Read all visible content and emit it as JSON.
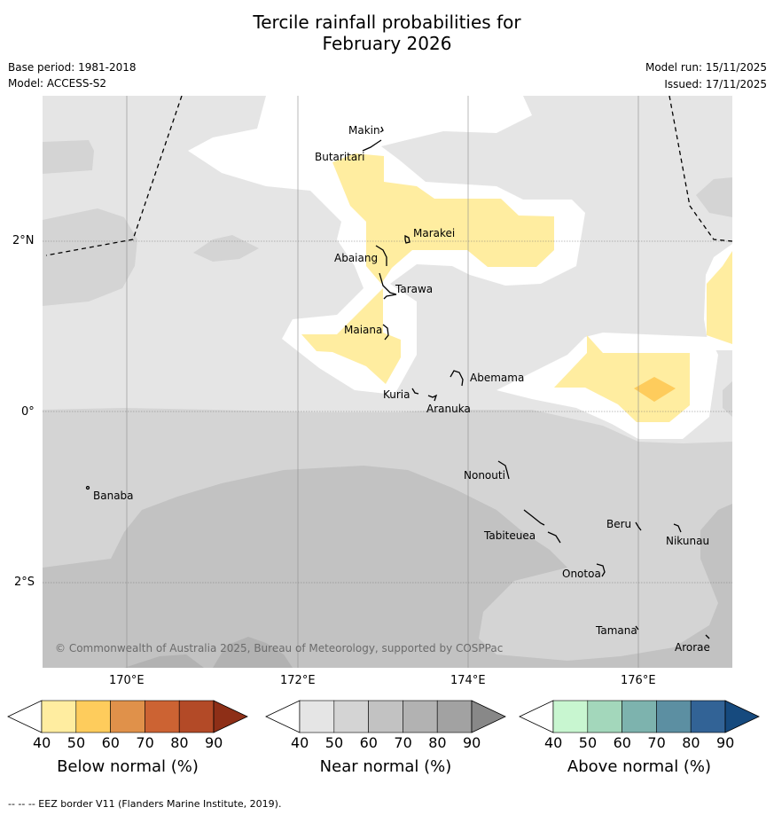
{
  "title": {
    "line1": "Tercile rainfall probabilities for",
    "line2": "February 2026"
  },
  "meta": {
    "base_period": "Base period: 1981-2018",
    "model": "Model: ACCESS-S2",
    "model_run": "Model run: 15/11/2025",
    "issued": "Issued: 17/11/2025"
  },
  "axes": {
    "lat_ticks": [
      "2°N",
      "0°",
      "2°S"
    ],
    "lon_ticks": [
      "170°E",
      "172°E",
      "174°E",
      "176°E"
    ]
  },
  "places": [
    "Makin",
    "Butaritari",
    "Marakei",
    "Abaiang",
    "Tarawa",
    "Maiana",
    "Abemama",
    "Kuria",
    "Aranuka",
    "Nonouti",
    "Banaba",
    "Tabiteuea",
    "Beru",
    "Nikunau",
    "Onotoa",
    "Tamana",
    "Arorae"
  ],
  "copyright": "© Commonwealth of Australia 2025, Bureau of Meteorology, supported by COSPPac",
  "colorbars": [
    {
      "title": "Below normal (%)",
      "ticks": [
        "40",
        "50",
        "60",
        "70",
        "80",
        "90"
      ],
      "colors": [
        "#ffffff",
        "#ffeda0",
        "#fecc5c",
        "#e0914a",
        "#cc6333",
        "#b34a27",
        "#8e2f17"
      ]
    },
    {
      "title": "Near normal (%)",
      "ticks": [
        "40",
        "50",
        "60",
        "70",
        "80",
        "90"
      ],
      "colors": [
        "#ffffff",
        "#e5e5e5",
        "#d4d4d4",
        "#c2c2c2",
        "#b2b2b2",
        "#a2a2a2",
        "#888888"
      ]
    },
    {
      "title": "Above normal (%)",
      "ticks": [
        "40",
        "50",
        "60",
        "70",
        "80",
        "90"
      ],
      "colors": [
        "#ffffff",
        "#c8f6d0",
        "#a3d7bb",
        "#7db3ae",
        "#5c8fa2",
        "#326396",
        "#164a7e"
      ]
    }
  ],
  "legend_note": "--  --  -- EEZ border V11 (Flanders Marine Institute, 2019)."
}
